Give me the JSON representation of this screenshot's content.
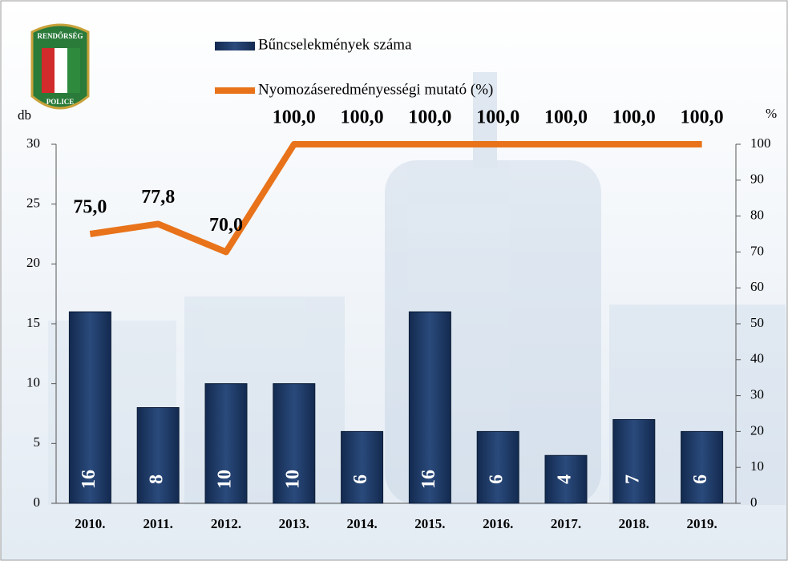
{
  "logo": {
    "top": "RENDŐRSÉG",
    "bottom": "POLICE"
  },
  "chart_data": {
    "type": "bar-line",
    "categories": [
      "2010.",
      "2011.",
      "2012.",
      "2013.",
      "2014.",
      "2015.",
      "2016.",
      "2017.",
      "2018.",
      "2019."
    ],
    "series": [
      {
        "name": "Bűncselekmények száma",
        "type": "bar",
        "color": "#1f3864",
        "values": [
          16,
          8,
          10,
          10,
          6,
          16,
          6,
          4,
          7,
          6
        ]
      },
      {
        "name": "Nyomozáseredményességi mutató (%)",
        "type": "line",
        "axis": "y2",
        "color": "#e8731a",
        "values": [
          75.0,
          77.8,
          70.0,
          100.0,
          100.0,
          100.0,
          100.0,
          100.0,
          100.0,
          100.0
        ],
        "value_labels": [
          "75,0",
          "77,8",
          "70,0",
          "100,0",
          "100,0",
          "100,0",
          "100,0",
          "100,0",
          "100,0",
          "100,0"
        ]
      }
    ],
    "ylabel": "db",
    "y2label": "%",
    "ylim": [
      0,
      30
    ],
    "yticks": [
      0,
      5,
      10,
      15,
      20,
      25,
      30
    ],
    "y2lim": [
      0,
      100
    ],
    "y2ticks": [
      0,
      10,
      20,
      30,
      40,
      50,
      60,
      70,
      80,
      90,
      100
    ]
  }
}
